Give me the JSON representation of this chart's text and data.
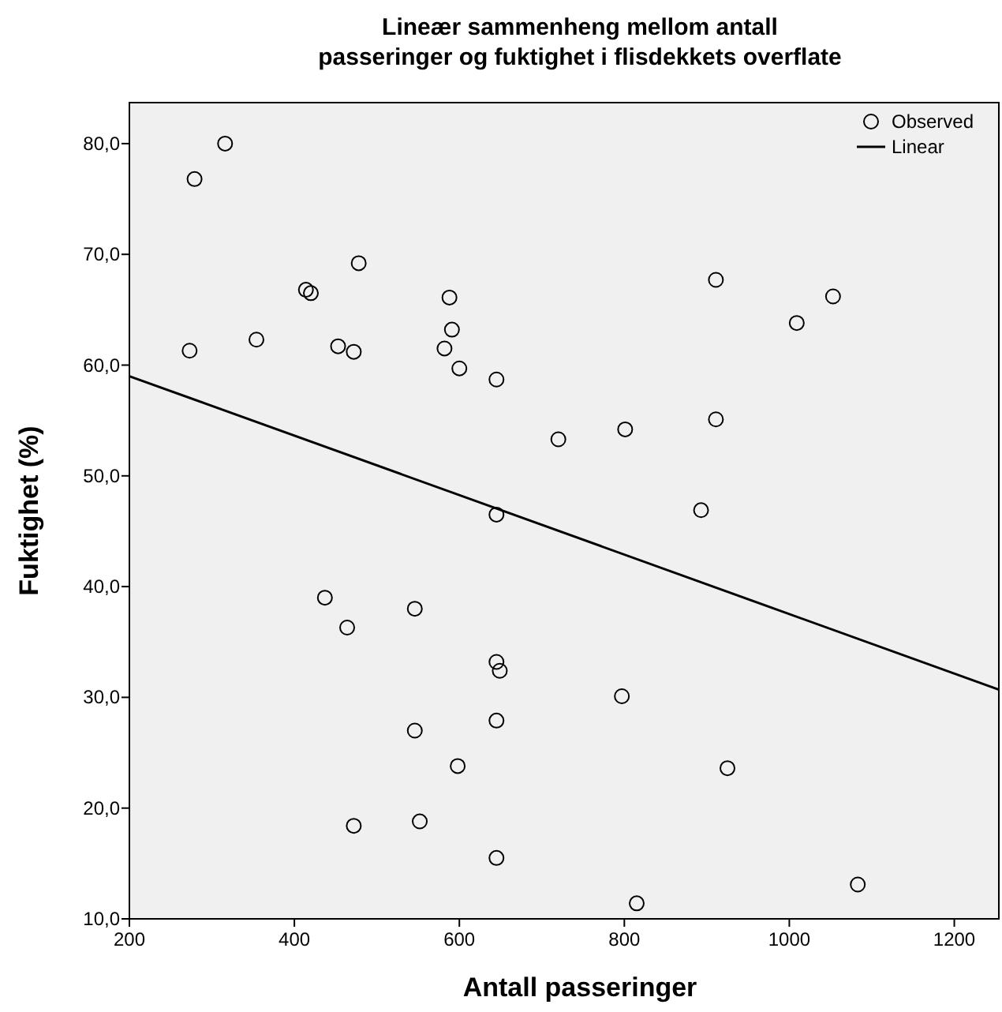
{
  "chart_data": {
    "type": "scatter",
    "title": "Lineær sammenheng mellom antall passeringer og fuktighet i flisdekkets overflate",
    "xlabel": "Antall passeringer",
    "ylabel": "Fuktighet (%)",
    "xlim": [
      200,
      1254
    ],
    "ylim": [
      10,
      83.7
    ],
    "xticks": [
      200,
      400,
      600,
      800,
      1000,
      1200
    ],
    "yticks": [
      {
        "value": 10,
        "label": "10,0"
      },
      {
        "value": 20,
        "label": "20,0"
      },
      {
        "value": 30,
        "label": "30,0"
      },
      {
        "value": 40,
        "label": "40,0"
      },
      {
        "value": 50,
        "label": "50,0"
      },
      {
        "value": 60,
        "label": "60,0"
      },
      {
        "value": 70,
        "label": "70,0"
      },
      {
        "value": 80,
        "label": "80,0"
      }
    ],
    "grid": false,
    "legend": "top right",
    "series": [
      {
        "name": "Observed",
        "marker": "circle",
        "color": "#000000",
        "x": [
          279,
          316,
          273,
          354,
          414,
          420,
          478,
          453,
          472,
          588,
          591,
          582,
          600,
          645,
          720,
          801,
          911,
          911,
          1009,
          1053,
          645,
          893,
          437,
          546,
          464,
          645,
          649,
          797,
          546,
          645,
          598,
          925,
          472,
          552,
          645,
          815,
          1083
        ],
        "values": [
          76.8,
          80.0,
          61.3,
          62.3,
          66.8,
          66.5,
          69.2,
          61.7,
          61.2,
          66.1,
          63.2,
          61.5,
          59.7,
          58.7,
          53.3,
          54.2,
          67.7,
          55.1,
          63.8,
          66.2,
          46.5,
          46.9,
          39.0,
          38.0,
          36.3,
          33.2,
          32.4,
          30.1,
          27.0,
          27.9,
          23.8,
          23.6,
          18.4,
          18.8,
          15.5,
          11.4,
          13.1
        ]
      },
      {
        "name": "Linear",
        "type": "line",
        "color": "#000000",
        "line_style": "solid",
        "marker": "none",
        "x": [
          200,
          1254
        ],
        "values": [
          59.0,
          30.7
        ]
      }
    ]
  }
}
